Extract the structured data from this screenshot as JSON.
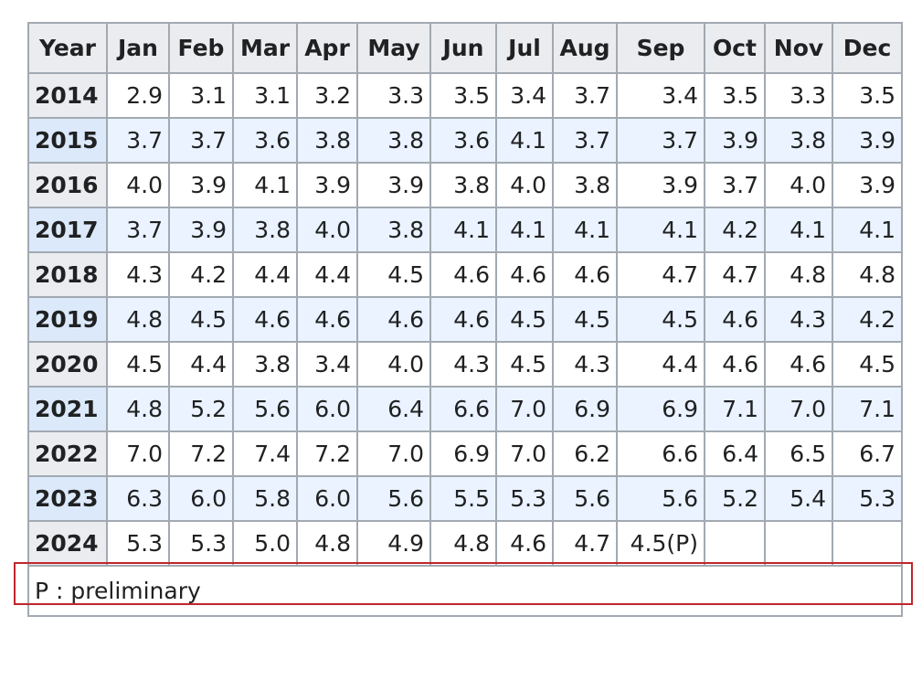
{
  "table": {
    "headers": [
      "Year",
      "Jan",
      "Feb",
      "Mar",
      "Apr",
      "May",
      "Jun",
      "Jul",
      "Aug",
      "Sep",
      "Oct",
      "Nov",
      "Dec"
    ],
    "rows": [
      {
        "year": "2014",
        "values": [
          "2.9",
          "3.1",
          "3.1",
          "3.2",
          "3.3",
          "3.5",
          "3.4",
          "3.7",
          "3.4",
          "3.5",
          "3.3",
          "3.5"
        ]
      },
      {
        "year": "2015",
        "values": [
          "3.7",
          "3.7",
          "3.6",
          "3.8",
          "3.8",
          "3.6",
          "4.1",
          "3.7",
          "3.7",
          "3.9",
          "3.8",
          "3.9"
        ]
      },
      {
        "year": "2016",
        "values": [
          "4.0",
          "3.9",
          "4.1",
          "3.9",
          "3.9",
          "3.8",
          "4.0",
          "3.8",
          "3.9",
          "3.7",
          "4.0",
          "3.9"
        ]
      },
      {
        "year": "2017",
        "values": [
          "3.7",
          "3.9",
          "3.8",
          "4.0",
          "3.8",
          "4.1",
          "4.1",
          "4.1",
          "4.1",
          "4.2",
          "4.1",
          "4.1"
        ]
      },
      {
        "year": "2018",
        "values": [
          "4.3",
          "4.2",
          "4.4",
          "4.4",
          "4.5",
          "4.6",
          "4.6",
          "4.6",
          "4.7",
          "4.7",
          "4.8",
          "4.8"
        ]
      },
      {
        "year": "2019",
        "values": [
          "4.8",
          "4.5",
          "4.6",
          "4.6",
          "4.6",
          "4.6",
          "4.5",
          "4.5",
          "4.5",
          "4.6",
          "4.3",
          "4.2"
        ]
      },
      {
        "year": "2020",
        "values": [
          "4.5",
          "4.4",
          "3.8",
          "3.4",
          "4.0",
          "4.3",
          "4.5",
          "4.3",
          "4.4",
          "4.6",
          "4.6",
          "4.5"
        ]
      },
      {
        "year": "2021",
        "values": [
          "4.8",
          "5.2",
          "5.6",
          "6.0",
          "6.4",
          "6.6",
          "7.0",
          "6.9",
          "6.9",
          "7.1",
          "7.0",
          "7.1"
        ]
      },
      {
        "year": "2022",
        "values": [
          "7.0",
          "7.2",
          "7.4",
          "7.2",
          "7.0",
          "6.9",
          "7.0",
          "6.2",
          "6.6",
          "6.4",
          "6.5",
          "6.7"
        ]
      },
      {
        "year": "2023",
        "values": [
          "6.3",
          "6.0",
          "5.8",
          "6.0",
          "5.6",
          "5.5",
          "5.3",
          "5.6",
          "5.6",
          "5.2",
          "5.4",
          "5.3"
        ]
      },
      {
        "year": "2024",
        "values": [
          "5.3",
          "5.3",
          "5.0",
          "4.8",
          "4.9",
          "4.8",
          "4.6",
          "4.7",
          "4.5(P)",
          "",
          "",
          ""
        ]
      }
    ],
    "footnote": "P : preliminary"
  },
  "colors": {
    "highlight_border": "#c0262d",
    "header_bg": "#eaecf0",
    "alt_row_bg": "#eaf3ff",
    "border": "#a2a9b1"
  }
}
